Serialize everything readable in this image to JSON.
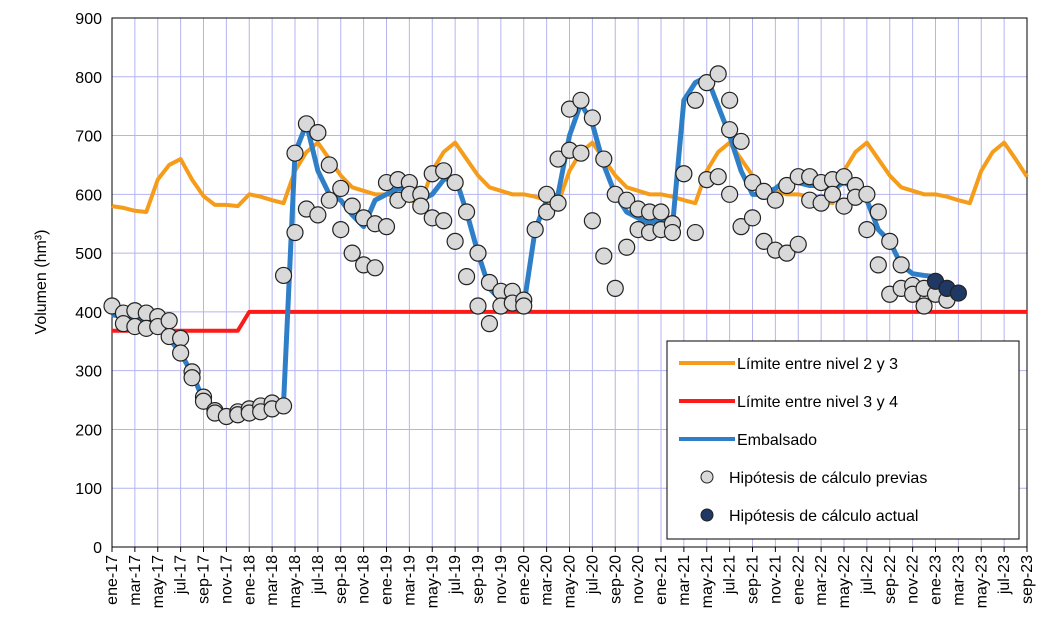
{
  "chart_data": {
    "type": "line",
    "y_label": "Volumen (hm³)",
    "xlim": [
      0,
      80
    ],
    "ylim": [
      0,
      900
    ],
    "yticks": [
      0,
      100,
      200,
      300,
      400,
      500,
      600,
      700,
      800,
      900
    ],
    "xticks": [
      {
        "value": 0,
        "label": "ene-17"
      },
      {
        "value": 2,
        "label": "mar-17"
      },
      {
        "value": 4,
        "label": "may-17"
      },
      {
        "value": 6,
        "label": "jul-17"
      },
      {
        "value": 8,
        "label": "sep-17"
      },
      {
        "value": 10,
        "label": "nov-17"
      },
      {
        "value": 12,
        "label": "ene-18"
      },
      {
        "value": 14,
        "label": "mar-18"
      },
      {
        "value": 16,
        "label": "may-18"
      },
      {
        "value": 18,
        "label": "jul-18"
      },
      {
        "value": 20,
        "label": "sep-18"
      },
      {
        "value": 22,
        "label": "nov-18"
      },
      {
        "value": 24,
        "label": "ene-19"
      },
      {
        "value": 26,
        "label": "mar-19"
      },
      {
        "value": 28,
        "label": "may-19"
      },
      {
        "value": 30,
        "label": "jul-19"
      },
      {
        "value": 32,
        "label": "sep-19"
      },
      {
        "value": 34,
        "label": "nov-19"
      },
      {
        "value": 36,
        "label": "ene-20"
      },
      {
        "value": 38,
        "label": "mar-20"
      },
      {
        "value": 40,
        "label": "may-20"
      },
      {
        "value": 42,
        "label": "jul-20"
      },
      {
        "value": 44,
        "label": "sep-20"
      },
      {
        "value": 46,
        "label": "nov-20"
      },
      {
        "value": 48,
        "label": "ene-21"
      },
      {
        "value": 50,
        "label": "mar-21"
      },
      {
        "value": 52,
        "label": "may-21"
      },
      {
        "value": 54,
        "label": "jul-21"
      },
      {
        "value": 56,
        "label": "sep-21"
      },
      {
        "value": 58,
        "label": "nov-21"
      },
      {
        "value": 60,
        "label": "ene-22"
      },
      {
        "value": 62,
        "label": "mar-22"
      },
      {
        "value": 64,
        "label": "may-22"
      },
      {
        "value": 66,
        "label": "jul-22"
      },
      {
        "value": 68,
        "label": "sep-22"
      },
      {
        "value": 70,
        "label": "nov-22"
      },
      {
        "value": 72,
        "label": "ene-23"
      },
      {
        "value": 74,
        "label": "mar-23"
      },
      {
        "value": 76,
        "label": "may-23"
      },
      {
        "value": 78,
        "label": "jul-23"
      },
      {
        "value": 80,
        "label": "sep-23"
      }
    ],
    "grid": true,
    "legend": "lower right",
    "series": [
      {
        "name": "Límite entre nivel 2 y 3",
        "type": "line",
        "color": "#f59c1a",
        "x": [
          0,
          1,
          2,
          3,
          4,
          5,
          6,
          7,
          8,
          9,
          10,
          11,
          12,
          13,
          14,
          15,
          16,
          17,
          18,
          19,
          20,
          21,
          22,
          23,
          24,
          25,
          26,
          27,
          28,
          29,
          30,
          31,
          32,
          33,
          34,
          35,
          36,
          37,
          38,
          39,
          40,
          41,
          42,
          43,
          44,
          45,
          46,
          47,
          48,
          49,
          50,
          51,
          52,
          53,
          54,
          55,
          56,
          57,
          58,
          59,
          60,
          61,
          62,
          63,
          64,
          65,
          66,
          67,
          68,
          69,
          70,
          71,
          72,
          73,
          74,
          75,
          76,
          77,
          78,
          79,
          80
        ],
        "values": [
          580,
          577,
          572,
          570,
          625,
          650,
          660,
          625,
          597,
          582,
          582,
          580,
          600,
          596,
          590,
          585,
          640,
          672,
          688,
          660,
          632,
          612,
          606,
          600,
          600,
          596,
          590,
          585,
          640,
          672,
          688,
          660,
          632,
          612,
          606,
          600,
          600,
          596,
          590,
          585,
          640,
          672,
          688,
          660,
          632,
          612,
          606,
          600,
          600,
          596,
          590,
          585,
          640,
          672,
          688,
          660,
          632,
          612,
          606,
          600,
          600,
          596,
          590,
          585,
          640,
          672,
          688,
          660,
          632,
          612,
          606,
          600,
          600,
          596,
          590,
          585,
          640,
          672,
          688,
          660,
          630
        ]
      },
      {
        "name": "Límite entre nivel 3 y 4",
        "type": "line",
        "color": "#ff1a1a",
        "x": [
          0,
          11,
          12,
          80
        ],
        "values": [
          368,
          368,
          400,
          400
        ]
      },
      {
        "name": "Embalsado",
        "type": "line",
        "color": "#2f7fc8",
        "x": [
          0,
          1,
          2,
          3,
          4,
          5,
          6,
          7,
          8,
          9,
          10,
          11,
          12,
          13,
          14,
          15,
          16,
          17,
          18,
          19,
          20,
          21,
          22,
          23,
          24,
          25,
          26,
          27,
          28,
          29,
          30,
          31,
          32,
          33,
          34,
          35,
          36,
          37,
          38,
          39,
          40,
          41,
          42,
          43,
          44,
          45,
          46,
          47,
          48,
          49,
          50,
          51,
          52,
          53,
          54,
          55,
          56,
          57,
          58,
          59,
          60,
          61,
          62,
          63,
          64,
          65,
          66,
          67,
          68,
          69,
          70,
          71,
          72
        ],
        "values": [
          395,
          392,
          390,
          385,
          375,
          355,
          330,
          295,
          250,
          230,
          228,
          230,
          232,
          235,
          240,
          245,
          670,
          720,
          640,
          600,
          590,
          565,
          545,
          590,
          600,
          610,
          605,
          590,
          600,
          625,
          630,
          570,
          500,
          440,
          420,
          415,
          410,
          540,
          590,
          600,
          700,
          755,
          720,
          650,
          600,
          570,
          560,
          550,
          560,
          545,
          760,
          790,
          800,
          750,
          700,
          640,
          600,
          600,
          610,
          625,
          620,
          615,
          615,
          610,
          620,
          610,
          590,
          540,
          520,
          480,
          465,
          462,
          460
        ]
      },
      {
        "name": "Hipótesis de cálculo previas",
        "type": "scatter",
        "color": "#d9d9d9",
        "x": [
          0,
          1,
          1,
          2,
          2,
          3,
          3,
          4,
          4,
          5,
          5,
          6,
          6,
          7,
          7,
          8,
          8,
          9,
          9,
          10,
          11,
          11,
          12,
          12,
          13,
          13,
          14,
          14,
          15,
          15,
          16,
          16,
          17,
          17,
          18,
          18,
          19,
          19,
          20,
          20,
          21,
          21,
          22,
          22,
          23,
          23,
          24,
          24,
          25,
          25,
          26,
          26,
          27,
          27,
          28,
          28,
          29,
          29,
          30,
          30,
          31,
          31,
          32,
          32,
          33,
          33,
          34,
          34,
          35,
          35,
          36,
          36,
          37,
          38,
          38,
          39,
          39,
          40,
          40,
          41,
          41,
          42,
          42,
          43,
          43,
          44,
          44,
          45,
          45,
          46,
          46,
          47,
          47,
          48,
          48,
          49,
          49,
          50,
          51,
          51,
          52,
          52,
          53,
          53,
          54,
          54,
          54,
          55,
          55,
          56,
          56,
          57,
          57,
          58,
          58,
          59,
          59,
          60,
          60,
          61,
          61,
          62,
          62,
          63,
          63,
          64,
          64,
          65,
          65,
          66,
          66,
          67,
          67,
          68,
          68,
          69,
          69,
          70,
          70,
          71,
          71,
          72,
          73
        ],
        "values": [
          410,
          398,
          380,
          402,
          375,
          398,
          372,
          392,
          375,
          385,
          358,
          355,
          330,
          298,
          288,
          255,
          248,
          232,
          228,
          222,
          230,
          225,
          235,
          228,
          240,
          230,
          245,
          235,
          462,
          240,
          670,
          535,
          720,
          575,
          705,
          565,
          650,
          590,
          610,
          540,
          580,
          500,
          560,
          480,
          550,
          475,
          620,
          545,
          625,
          590,
          620,
          600,
          600,
          580,
          635,
          560,
          640,
          555,
          620,
          520,
          570,
          460,
          500,
          410,
          450,
          380,
          435,
          410,
          435,
          415,
          420,
          410,
          540,
          600,
          570,
          660,
          585,
          745,
          675,
          760,
          670,
          730,
          555,
          660,
          495,
          600,
          440,
          590,
          510,
          575,
          540,
          570,
          535,
          570,
          540,
          550,
          535,
          635,
          760,
          535,
          790,
          625,
          805,
          630,
          760,
          710,
          600,
          690,
          545,
          620,
          560,
          605,
          520,
          590,
          505,
          615,
          500,
          630,
          515,
          630,
          590,
          620,
          585,
          625,
          600,
          630,
          580,
          615,
          595,
          600,
          540,
          570,
          480,
          520,
          430,
          480,
          440,
          445,
          430,
          440,
          410,
          430,
          420
        ]
      },
      {
        "name": "Hipótesis de cálculo actual",
        "type": "scatter",
        "color": "#1f3864",
        "x": [
          72,
          73,
          74
        ],
        "values": [
          452,
          440,
          432
        ]
      }
    ]
  }
}
